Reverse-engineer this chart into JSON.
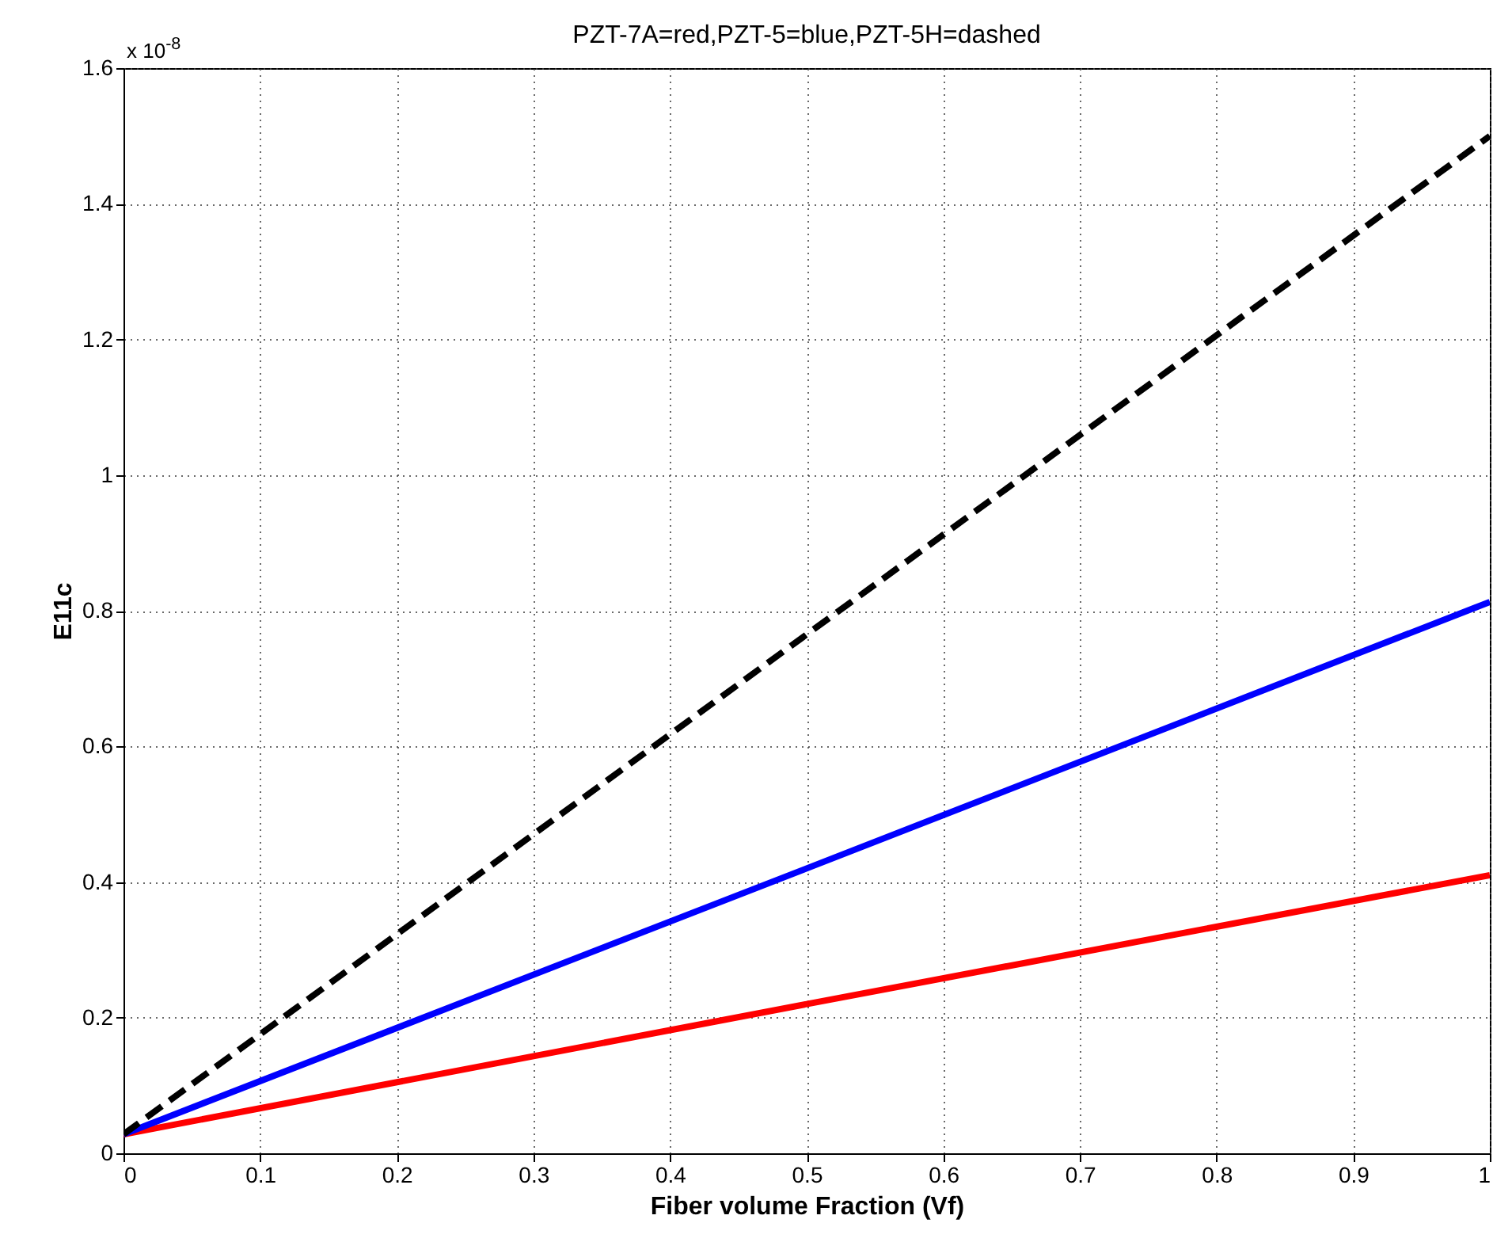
{
  "chart_data": {
    "type": "line",
    "title": "PZT-7A=red,PZT-5=blue,PZT-5H=dashed",
    "xlabel": "Fiber volume Fraction (Vf)",
    "ylabel": "E11c",
    "annotations": [
      "x 10$^{-8}$"
    ],
    "xlim": [
      0,
      1
    ],
    "xticks": [
      0,
      0.1,
      0.2,
      0.3,
      0.4,
      0.5,
      0.6,
      0.7,
      0.8,
      0.9,
      1
    ],
    "ylim": [
      0,
      1.6
    ],
    "yticks": [
      0,
      0.2,
      0.4,
      0.6,
      0.8,
      1,
      1.2,
      1.4,
      1.6
    ],
    "grid": true,
    "series": [
      {
        "color": "#ff0000",
        "line_style": "solid",
        "x": [
          0,
          0.5,
          1
        ],
        "values": [
          0.028,
          0.22,
          0.41
        ]
      },
      {
        "color": "#0000ff",
        "line_style": "solid",
        "x": [
          0,
          0.5,
          1
        ],
        "values": [
          0.028,
          0.42,
          0.813
        ]
      },
      {
        "color": "#000000",
        "line_style": "dashed",
        "x": [
          0,
          0.5,
          1
        ],
        "values": [
          0.028,
          0.765,
          1.5
        ]
      }
    ]
  }
}
